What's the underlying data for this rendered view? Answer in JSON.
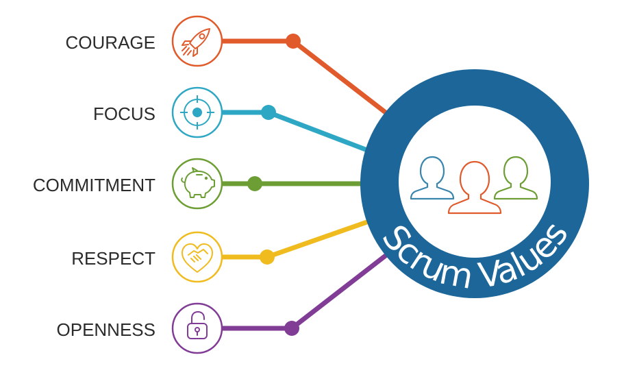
{
  "diagram": {
    "center_label": "Scrum Values",
    "colors": {
      "ring": "#1c6699",
      "courage": "#e05a2b",
      "focus": "#2ea7c4",
      "commitment": "#6d9e35",
      "respect": "#f0bb1e",
      "openness": "#813c96"
    },
    "values": [
      {
        "label": "COURAGE",
        "icon": "rocket-icon",
        "color_key": "courage"
      },
      {
        "label": "FOCUS",
        "icon": "target-icon",
        "color_key": "focus"
      },
      {
        "label": "COMMITMENT",
        "icon": "piggy-bank-icon",
        "color_key": "commitment"
      },
      {
        "label": "RESPECT",
        "icon": "handshake-heart-icon",
        "color_key": "respect"
      },
      {
        "label": "OPENNESS",
        "icon": "open-padlock-icon",
        "color_key": "openness"
      }
    ],
    "center_icon": "team-people-icon"
  }
}
